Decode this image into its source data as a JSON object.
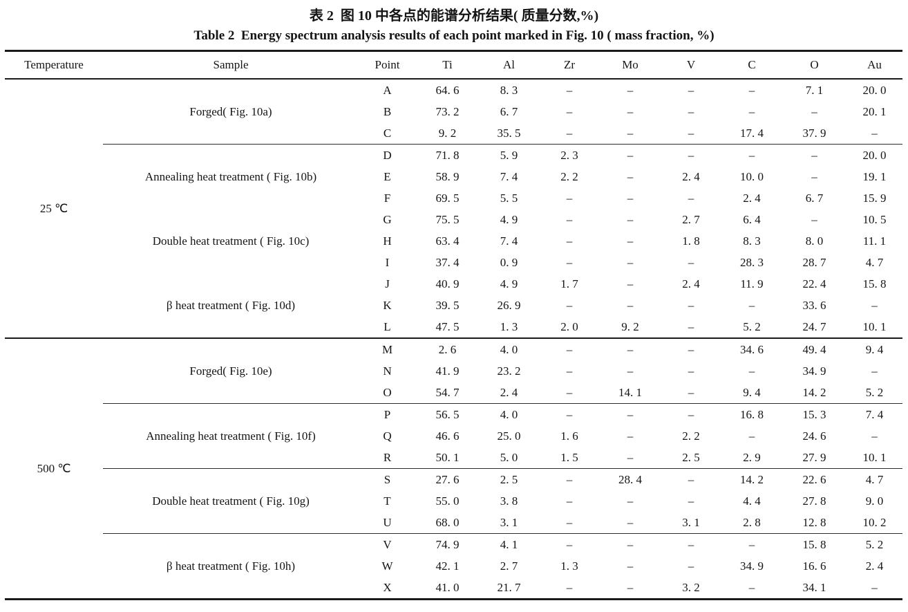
{
  "title_cn": "表 2  图 10 中各点的能谱分析结果( 质量分数,%)",
  "title_en": "Table 2  Energy spectrum analysis results of each point marked in Fig. 10 ( mass fraction, %)",
  "columns": [
    "Temperature",
    "Sample",
    "Point",
    "Ti",
    "Al",
    "Zr",
    "Mo",
    "V",
    "C",
    "O",
    "Au"
  ],
  "dash": "–",
  "sections": [
    {
      "temperature": "25 ℃",
      "groups": [
        {
          "sample": "Forged( Fig. 10a)",
          "separator_after": true,
          "rows": [
            {
              "point": "A",
              "values": [
                "64. 6",
                "8. 3",
                "–",
                "–",
                "–",
                "–",
                "7. 1",
                "20. 0"
              ]
            },
            {
              "point": "B",
              "values": [
                "73. 2",
                "6. 7",
                "–",
                "–",
                "–",
                "–",
                "–",
                "20. 1"
              ]
            },
            {
              "point": "C",
              "values": [
                "9. 2",
                "35. 5",
                "–",
                "–",
                "–",
                "17. 4",
                "37. 9",
                "–"
              ]
            }
          ]
        },
        {
          "sample": "Annealing heat treatment ( Fig. 10b)",
          "separator_after": false,
          "rows": [
            {
              "point": "D",
              "values": [
                "71. 8",
                "5. 9",
                "2. 3",
                "–",
                "–",
                "–",
                "–",
                "20. 0"
              ]
            },
            {
              "point": "E",
              "values": [
                "58. 9",
                "7. 4",
                "2. 2",
                "–",
                "2. 4",
                "10. 0",
                "–",
                "19. 1"
              ]
            },
            {
              "point": "F",
              "values": [
                "69. 5",
                "5. 5",
                "–",
                "–",
                "–",
                "2. 4",
                "6. 7",
                "15. 9"
              ]
            }
          ]
        },
        {
          "sample": "Double heat treatment ( Fig. 10c)",
          "separator_after": false,
          "rows": [
            {
              "point": "G",
              "values": [
                "75. 5",
                "4. 9",
                "–",
                "–",
                "2. 7",
                "6. 4",
                "–",
                "10. 5"
              ]
            },
            {
              "point": "H",
              "values": [
                "63. 4",
                "7. 4",
                "–",
                "–",
                "1. 8",
                "8. 3",
                "8. 0",
                "11. 1"
              ]
            },
            {
              "point": "I",
              "values": [
                "37. 4",
                "0. 9",
                "–",
                "–",
                "–",
                "28. 3",
                "28. 7",
                "4. 7"
              ]
            }
          ]
        },
        {
          "sample": "β heat treatment ( Fig. 10d)",
          "separator_after": false,
          "rows": [
            {
              "point": "J",
              "values": [
                "40. 9",
                "4. 9",
                "1. 7",
                "–",
                "2. 4",
                "11. 9",
                "22. 4",
                "15. 8"
              ]
            },
            {
              "point": "K",
              "values": [
                "39. 5",
                "26. 9",
                "–",
                "–",
                "–",
                "–",
                "33. 6",
                "–"
              ]
            },
            {
              "point": "L",
              "values": [
                "47. 5",
                "1. 3",
                "2. 0",
                "9. 2",
                "–",
                "5. 2",
                "24. 7",
                "10. 1"
              ]
            }
          ]
        }
      ]
    },
    {
      "temperature": "500 ℃",
      "groups": [
        {
          "sample": "Forged( Fig. 10e)",
          "separator_after": true,
          "rows": [
            {
              "point": "M",
              "values": [
                "2. 6",
                "4. 0",
                "–",
                "–",
                "–",
                "34. 6",
                "49. 4",
                "9. 4"
              ]
            },
            {
              "point": "N",
              "values": [
                "41. 9",
                "23. 2",
                "–",
                "–",
                "–",
                "–",
                "34. 9",
                "–"
              ]
            },
            {
              "point": "O",
              "values": [
                "54. 7",
                "2. 4",
                "–",
                "14. 1",
                "–",
                "9. 4",
                "14. 2",
                "5. 2"
              ]
            }
          ]
        },
        {
          "sample": "Annealing heat treatment ( Fig. 10f)",
          "separator_after": true,
          "rows": [
            {
              "point": "P",
              "values": [
                "56. 5",
                "4. 0",
                "–",
                "–",
                "–",
                "16. 8",
                "15. 3",
                "7. 4"
              ]
            },
            {
              "point": "Q",
              "values": [
                "46. 6",
                "25. 0",
                "1. 6",
                "–",
                "2. 2",
                "–",
                "24. 6",
                "–"
              ]
            },
            {
              "point": "R",
              "values": [
                "50. 1",
                "5. 0",
                "1. 5",
                "–",
                "2. 5",
                "2. 9",
                "27. 9",
                "10. 1"
              ]
            }
          ]
        },
        {
          "sample": "Double heat treatment ( Fig. 10g)",
          "separator_after": true,
          "rows": [
            {
              "point": "S",
              "values": [
                "27. 6",
                "2. 5",
                "–",
                "28. 4",
                "–",
                "14. 2",
                "22. 6",
                "4. 7"
              ]
            },
            {
              "point": "T",
              "values": [
                "55. 0",
                "3. 8",
                "–",
                "–",
                "–",
                "4. 4",
                "27. 8",
                "9. 0"
              ]
            },
            {
              "point": "U",
              "values": [
                "68. 0",
                "3. 1",
                "–",
                "–",
                "3. 1",
                "2. 8",
                "12. 8",
                "10. 2"
              ]
            }
          ]
        },
        {
          "sample": "β heat treatment ( Fig. 10h)",
          "separator_after": false,
          "rows": [
            {
              "point": "V",
              "values": [
                "74. 9",
                "4. 1",
                "–",
                "–",
                "–",
                "–",
                "15. 8",
                "5. 2"
              ]
            },
            {
              "point": "W",
              "values": [
                "42. 1",
                "2. 7",
                "1. 3",
                "–",
                "–",
                "34. 9",
                "16. 6",
                "2. 4"
              ]
            },
            {
              "point": "X",
              "values": [
                "41. 0",
                "21. 7",
                "–",
                "–",
                "3. 2",
                "–",
                "34. 1",
                "–"
              ]
            }
          ]
        }
      ]
    }
  ]
}
